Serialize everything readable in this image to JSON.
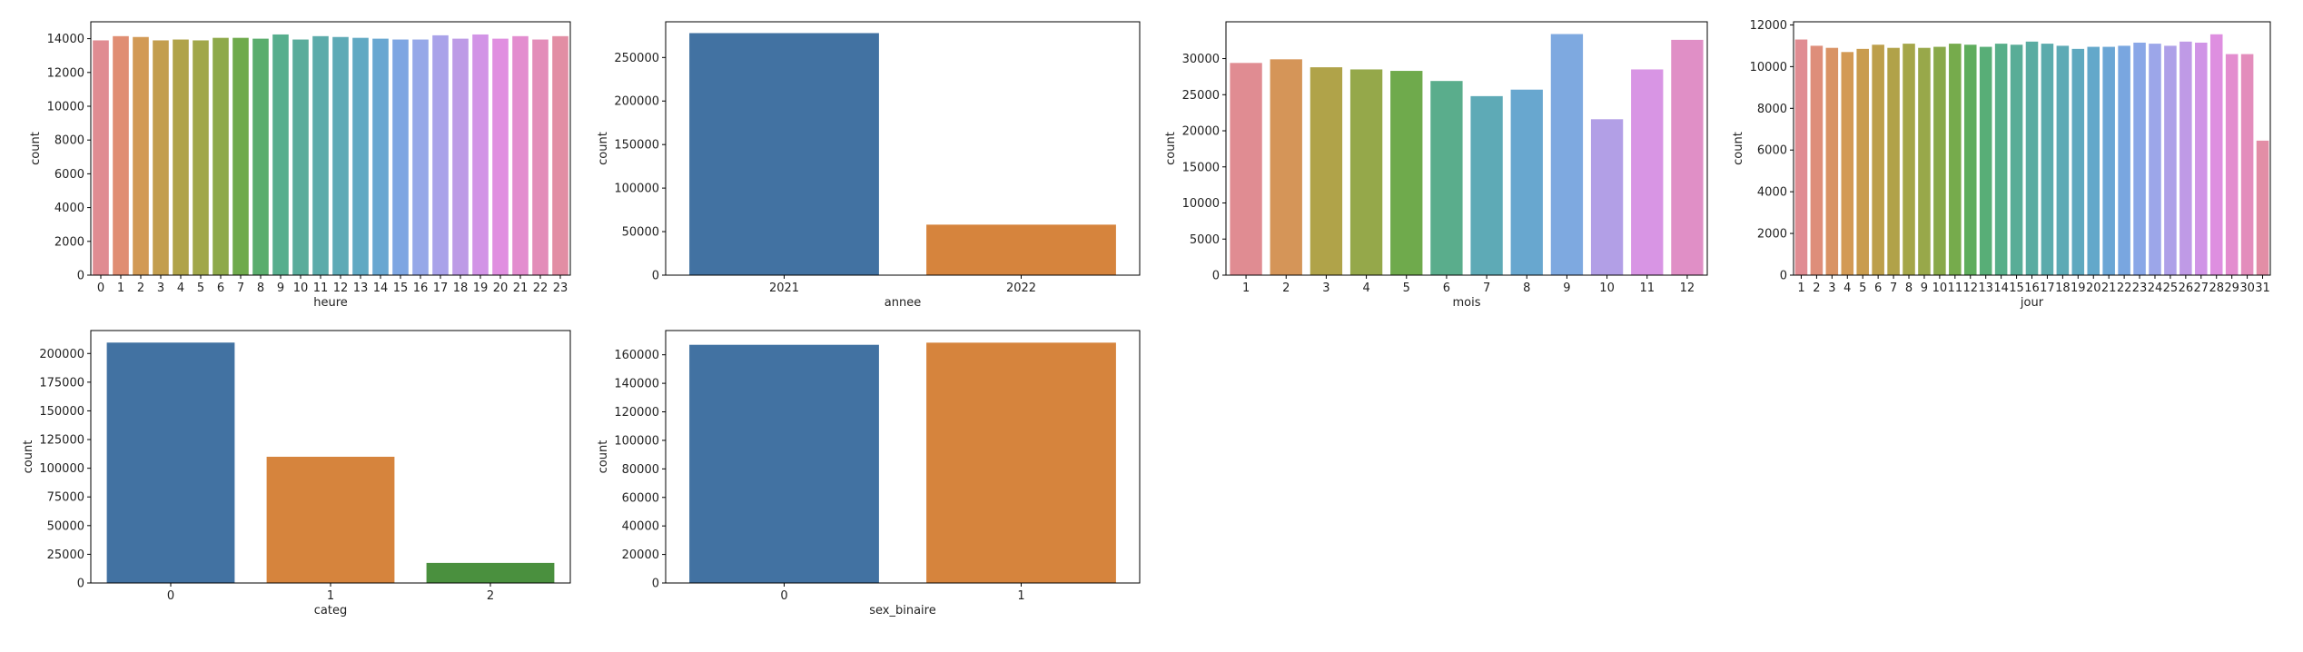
{
  "chart_data": [
    {
      "type": "bar",
      "xlabel": "heure",
      "ylabel": "count",
      "ylim": [
        0,
        15000
      ],
      "yticks": [
        0,
        2000,
        4000,
        6000,
        8000,
        10000,
        12000,
        14000
      ],
      "categories": [
        "0",
        "1",
        "2",
        "3",
        "4",
        "5",
        "6",
        "7",
        "8",
        "9",
        "10",
        "11",
        "12",
        "13",
        "14",
        "15",
        "16",
        "17",
        "18",
        "19",
        "20",
        "21",
        "22",
        "23"
      ],
      "values": [
        13900,
        14150,
        14100,
        13900,
        13950,
        13900,
        14050,
        14050,
        14000,
        14250,
        13950,
        14150,
        14100,
        14050,
        14000,
        13950,
        13950,
        14200,
        14000,
        14250,
        14000,
        14150,
        13950,
        14150
      ],
      "colors": [
        "#e08c92",
        "#e08e73",
        "#d29a55",
        "#c39e4e",
        "#b0a349",
        "#a1a74a",
        "#8ea94a",
        "#6faa4c",
        "#5aad6d",
        "#57ae8d",
        "#5aac9b",
        "#5cabaa",
        "#5eaab6",
        "#61a9c3",
        "#69a7d1",
        "#7ea6e2",
        "#96a8e8",
        "#a9a2e9",
        "#bd9be6",
        "#d294e6",
        "#e08fe0",
        "#e38dcf",
        "#e38db9",
        "#e28ea4"
      ],
      "grid": false
    },
    {
      "type": "bar",
      "xlabel": "annee",
      "ylabel": "count",
      "ylim": [
        0,
        291000
      ],
      "yticks": [
        0,
        50000,
        100000,
        150000,
        200000,
        250000
      ],
      "categories": [
        "2021",
        "2022"
      ],
      "values": [
        278000,
        58000
      ],
      "colors": [
        "#4272a2",
        "#d6843d"
      ],
      "grid": false
    },
    {
      "type": "bar",
      "xlabel": "mois",
      "ylabel": "count",
      "ylim": [
        0,
        35100
      ],
      "yticks": [
        0,
        5000,
        10000,
        15000,
        20000,
        25000,
        30000
      ],
      "categories": [
        "1",
        "2",
        "3",
        "4",
        "5",
        "6",
        "7",
        "8",
        "9",
        "10",
        "11",
        "12"
      ],
      "values": [
        29400,
        29900,
        28800,
        28500,
        28300,
        26900,
        24800,
        25700,
        33400,
        21600,
        28500,
        32600
      ],
      "colors": [
        "#e08c92",
        "#d59558",
        "#b0a349",
        "#95a84a",
        "#6faa4c",
        "#5aad8c",
        "#5eaab6",
        "#68a7cf",
        "#7ea9e0",
        "#b29fe6",
        "#d895e4",
        "#e08fc6"
      ],
      "grid": false
    },
    {
      "type": "bar",
      "xlabel": "jour",
      "ylabel": "count",
      "ylim": [
        0,
        12150
      ],
      "yticks": [
        0,
        2000,
        4000,
        6000,
        8000,
        10000,
        12000
      ],
      "categories": [
        "1",
        "2",
        "3",
        "4",
        "5",
        "6",
        "7",
        "8",
        "9",
        "10",
        "11",
        "12",
        "13",
        "14",
        "15",
        "16",
        "17",
        "18",
        "19",
        "20",
        "21",
        "22",
        "23",
        "24",
        "25",
        "26",
        "27",
        "28",
        "29",
        "30",
        "31"
      ],
      "values": [
        11300,
        11000,
        10900,
        10700,
        10850,
        11050,
        10900,
        11100,
        10900,
        10950,
        11100,
        11050,
        10950,
        11100,
        11050,
        11200,
        11100,
        11000,
        10850,
        10950,
        10950,
        11000,
        11150,
        11100,
        11000,
        11200,
        11150,
        11550,
        10600,
        10600,
        6450
      ],
      "colors": [
        "#e08c92",
        "#de8e7a",
        "#d99365",
        "#d39a55",
        "#c99c4e",
        "#bd9f4b",
        "#b1a249",
        "#a5a649",
        "#98a84a",
        "#89a94a",
        "#76ab4c",
        "#5fad5d",
        "#58ae77",
        "#57ae89",
        "#59ad97",
        "#5aaca1",
        "#5babac",
        "#5daab5",
        "#5fa9bf",
        "#63a8ca",
        "#6ba6d5",
        "#79a6e0",
        "#8aa7e7",
        "#9ca6e9",
        "#aea0e8",
        "#bf9ae6",
        "#d094e6",
        "#de8fe0",
        "#e38dcf",
        "#e38dbc",
        "#e28ea6"
      ],
      "grid": false
    },
    {
      "type": "bar",
      "xlabel": "categ",
      "ylabel": "count",
      "ylim": [
        0,
        220000
      ],
      "yticks": [
        0,
        25000,
        50000,
        75000,
        100000,
        125000,
        150000,
        175000,
        200000
      ],
      "categories": [
        "0",
        "1",
        "2"
      ],
      "values": [
        209500,
        110000,
        17500
      ],
      "colors": [
        "#4272a2",
        "#d6843d",
        "#4a903e"
      ],
      "grid": false
    },
    {
      "type": "bar",
      "xlabel": "sex_binaire",
      "ylabel": "count",
      "ylim": [
        0,
        177000
      ],
      "yticks": [
        0,
        20000,
        40000,
        60000,
        80000,
        100000,
        120000,
        140000,
        160000
      ],
      "categories": [
        "0",
        "1"
      ],
      "values": [
        167000,
        168500
      ],
      "colors": [
        "#4272a2",
        "#d6843d"
      ],
      "grid": false
    }
  ]
}
